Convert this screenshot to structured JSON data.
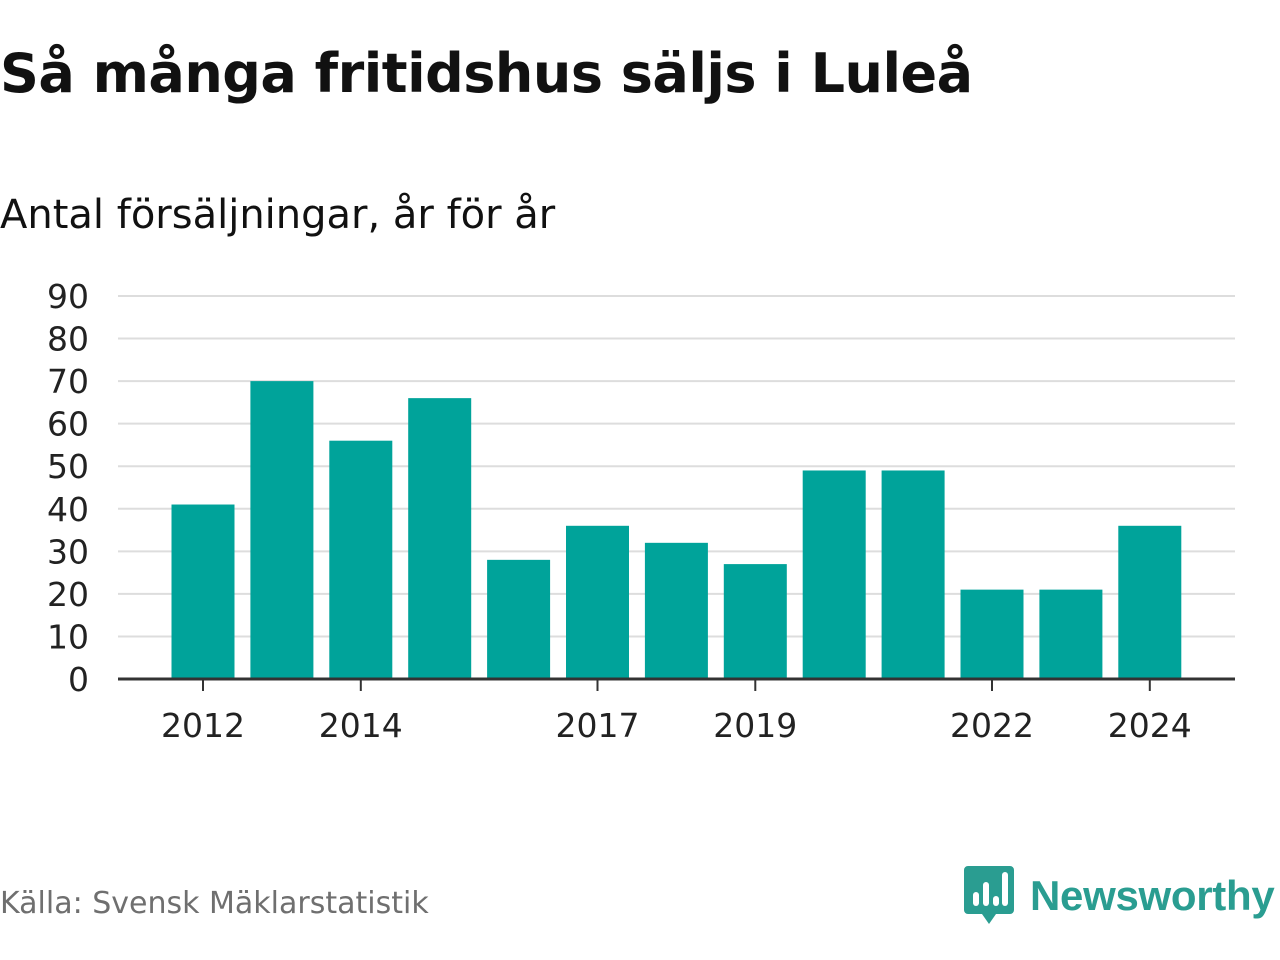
{
  "title": "Så många fritidshus säljs i Luleå",
  "subtitle": "Antal försäljningar, år för år",
  "source": "Källa: Svensk Mäklarstatistik",
  "brand": {
    "name": "Newsworthy",
    "icon": "newsworthy-logo-icon",
    "color": "#2a9d91"
  },
  "colors": {
    "bar": "#00a39a",
    "gridline": "#dddddd",
    "axis": "#333333"
  },
  "chart_data": {
    "type": "bar",
    "categories": [
      "2012",
      "2013",
      "2014",
      "2015",
      "2016",
      "2017",
      "2018",
      "2019",
      "2020",
      "2021",
      "2022",
      "2023",
      "2024"
    ],
    "x_tick_labels": [
      "2012",
      "2014",
      "2017",
      "2019",
      "2022",
      "2024"
    ],
    "values": [
      41,
      70,
      56,
      66,
      28,
      36,
      32,
      27,
      49,
      49,
      21,
      21,
      36
    ],
    "ylim": [
      0,
      90
    ],
    "yticks": [
      0,
      10,
      20,
      30,
      40,
      50,
      60,
      70,
      80,
      90
    ],
    "grid": true,
    "legend": "none"
  }
}
